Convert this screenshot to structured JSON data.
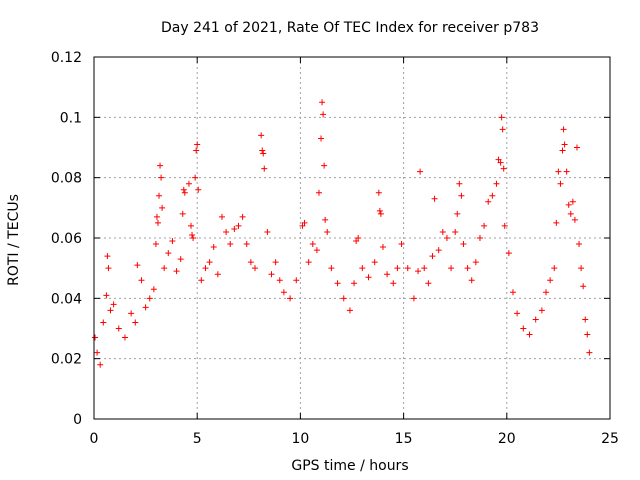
{
  "chart_data": {
    "type": "scatter",
    "title": "Day 241 of 2021, Rate Of TEC Index for receiver p783",
    "xlabel": "GPS time / hours",
    "ylabel": "ROTI / TECUs",
    "xlim": [
      0,
      25
    ],
    "ylim": [
      0,
      0.12
    ],
    "xticks": [
      0,
      5,
      10,
      15,
      20,
      25
    ],
    "xtick_labels": [
      "0",
      "5",
      "10",
      "15",
      "20",
      "25"
    ],
    "yticks": [
      0,
      0.02,
      0.04,
      0.06,
      0.08,
      0.1,
      0.12
    ],
    "ytick_labels": [
      "0",
      "0.02",
      "0.04",
      "0.06",
      "0.08",
      "0.1",
      "0.12"
    ],
    "grid": true,
    "marker": "plus",
    "color": "#ff0000",
    "series": [
      {
        "name": "ROTI",
        "points": [
          [
            0.05,
            0.027
          ],
          [
            0.15,
            0.022
          ],
          [
            0.3,
            0.018
          ],
          [
            0.45,
            0.032
          ],
          [
            0.6,
            0.041
          ],
          [
            0.65,
            0.054
          ],
          [
            0.7,
            0.05
          ],
          [
            0.8,
            0.036
          ],
          [
            0.95,
            0.038
          ],
          [
            1.2,
            0.03
          ],
          [
            1.5,
            0.027
          ],
          [
            1.8,
            0.035
          ],
          [
            2.0,
            0.032
          ],
          [
            2.1,
            0.051
          ],
          [
            2.3,
            0.046
          ],
          [
            2.5,
            0.037
          ],
          [
            2.7,
            0.04
          ],
          [
            2.9,
            0.043
          ],
          [
            3.0,
            0.058
          ],
          [
            3.05,
            0.067
          ],
          [
            3.1,
            0.065
          ],
          [
            3.15,
            0.074
          ],
          [
            3.2,
            0.084
          ],
          [
            3.25,
            0.08
          ],
          [
            3.3,
            0.07
          ],
          [
            3.4,
            0.05
          ],
          [
            3.6,
            0.055
          ],
          [
            3.8,
            0.059
          ],
          [
            4.0,
            0.049
          ],
          [
            4.2,
            0.053
          ],
          [
            4.3,
            0.068
          ],
          [
            4.35,
            0.076
          ],
          [
            4.4,
            0.075
          ],
          [
            4.6,
            0.078
          ],
          [
            4.7,
            0.064
          ],
          [
            4.75,
            0.061
          ],
          [
            4.8,
            0.06
          ],
          [
            4.9,
            0.08
          ],
          [
            4.95,
            0.089
          ],
          [
            5.0,
            0.091
          ],
          [
            5.05,
            0.076
          ],
          [
            5.2,
            0.046
          ],
          [
            5.4,
            0.05
          ],
          [
            5.6,
            0.052
          ],
          [
            5.8,
            0.057
          ],
          [
            6.0,
            0.048
          ],
          [
            6.2,
            0.067
          ],
          [
            6.4,
            0.062
          ],
          [
            6.6,
            0.058
          ],
          [
            6.8,
            0.063
          ],
          [
            7.0,
            0.064
          ],
          [
            7.2,
            0.067
          ],
          [
            7.4,
            0.058
          ],
          [
            7.6,
            0.052
          ],
          [
            7.8,
            0.05
          ],
          [
            8.1,
            0.094
          ],
          [
            8.15,
            0.089
          ],
          [
            8.2,
            0.088
          ],
          [
            8.25,
            0.083
          ],
          [
            8.4,
            0.062
          ],
          [
            8.6,
            0.048
          ],
          [
            8.8,
            0.052
          ],
          [
            9.0,
            0.046
          ],
          [
            9.2,
            0.042
          ],
          [
            9.5,
            0.04
          ],
          [
            9.8,
            0.046
          ],
          [
            10.1,
            0.064
          ],
          [
            10.2,
            0.065
          ],
          [
            10.4,
            0.052
          ],
          [
            10.6,
            0.058
          ],
          [
            10.8,
            0.056
          ],
          [
            10.9,
            0.075
          ],
          [
            11.0,
            0.093
          ],
          [
            11.05,
            0.105
          ],
          [
            11.1,
            0.101
          ],
          [
            11.15,
            0.084
          ],
          [
            11.2,
            0.066
          ],
          [
            11.3,
            0.062
          ],
          [
            11.5,
            0.05
          ],
          [
            11.8,
            0.045
          ],
          [
            12.1,
            0.04
          ],
          [
            12.4,
            0.036
          ],
          [
            12.6,
            0.045
          ],
          [
            12.7,
            0.059
          ],
          [
            12.8,
            0.06
          ],
          [
            13.0,
            0.05
          ],
          [
            13.3,
            0.047
          ],
          [
            13.6,
            0.052
          ],
          [
            13.8,
            0.075
          ],
          [
            13.85,
            0.069
          ],
          [
            13.9,
            0.068
          ],
          [
            14.0,
            0.057
          ],
          [
            14.2,
            0.048
          ],
          [
            14.5,
            0.045
          ],
          [
            14.7,
            0.05
          ],
          [
            14.9,
            0.058
          ],
          [
            15.2,
            0.05
          ],
          [
            15.5,
            0.04
          ],
          [
            15.7,
            0.049
          ],
          [
            15.8,
            0.082
          ],
          [
            16.0,
            0.05
          ],
          [
            16.2,
            0.045
          ],
          [
            16.4,
            0.054
          ],
          [
            16.5,
            0.073
          ],
          [
            16.7,
            0.056
          ],
          [
            16.9,
            0.062
          ],
          [
            17.1,
            0.06
          ],
          [
            17.3,
            0.05
          ],
          [
            17.5,
            0.062
          ],
          [
            17.6,
            0.068
          ],
          [
            17.7,
            0.078
          ],
          [
            17.8,
            0.074
          ],
          [
            17.9,
            0.058
          ],
          [
            18.1,
            0.05
          ],
          [
            18.3,
            0.046
          ],
          [
            18.5,
            0.052
          ],
          [
            18.7,
            0.06
          ],
          [
            18.9,
            0.064
          ],
          [
            19.1,
            0.072
          ],
          [
            19.3,
            0.074
          ],
          [
            19.5,
            0.078
          ],
          [
            19.6,
            0.086
          ],
          [
            19.7,
            0.085
          ],
          [
            19.75,
            0.1
          ],
          [
            19.8,
            0.096
          ],
          [
            19.85,
            0.083
          ],
          [
            19.9,
            0.064
          ],
          [
            20.1,
            0.055
          ],
          [
            20.3,
            0.042
          ],
          [
            20.5,
            0.035
          ],
          [
            20.8,
            0.03
          ],
          [
            21.1,
            0.028
          ],
          [
            21.4,
            0.033
          ],
          [
            21.7,
            0.036
          ],
          [
            21.9,
            0.042
          ],
          [
            22.1,
            0.046
          ],
          [
            22.3,
            0.05
          ],
          [
            22.4,
            0.065
          ],
          [
            22.5,
            0.082
          ],
          [
            22.6,
            0.078
          ],
          [
            22.7,
            0.089
          ],
          [
            22.75,
            0.096
          ],
          [
            22.8,
            0.091
          ],
          [
            22.9,
            0.082
          ],
          [
            23.0,
            0.071
          ],
          [
            23.1,
            0.068
          ],
          [
            23.2,
            0.072
          ],
          [
            23.3,
            0.066
          ],
          [
            23.4,
            0.09
          ],
          [
            23.5,
            0.058
          ],
          [
            23.6,
            0.05
          ],
          [
            23.7,
            0.044
          ],
          [
            23.8,
            0.033
          ],
          [
            23.9,
            0.028
          ],
          [
            24.0,
            0.022
          ]
        ]
      }
    ]
  }
}
